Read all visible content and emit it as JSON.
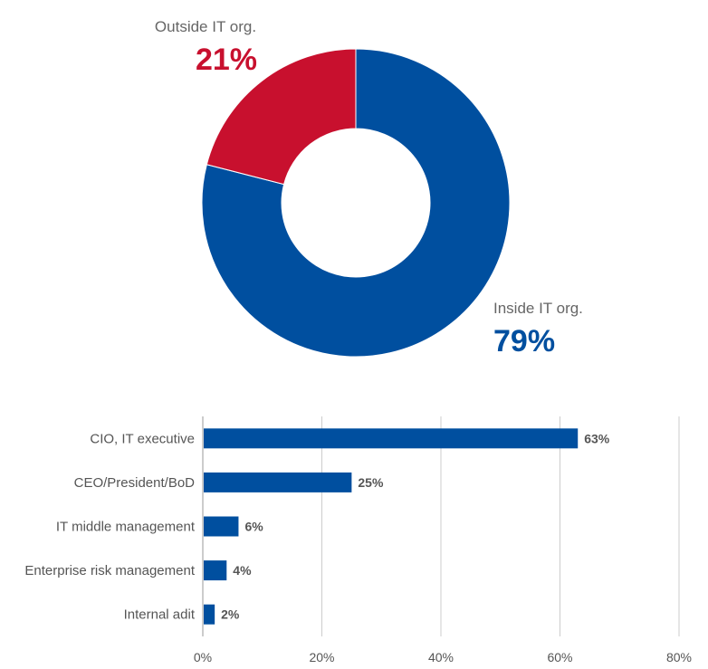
{
  "chart_data": [
    {
      "type": "pie",
      "title": "",
      "categories": [
        "Inside IT org.",
        "Outside IT org."
      ],
      "values": [
        79,
        21
      ],
      "value_labels": [
        "79%",
        "21%"
      ],
      "colors": [
        "#004f9f",
        "#c8102e"
      ]
    },
    {
      "type": "bar",
      "orientation": "horizontal",
      "title": "",
      "xlabel": "",
      "ylabel": "",
      "categories": [
        "CIO, IT executive",
        "CEO/President/BoD",
        "IT middle management",
        "Enterprise risk management",
        "Internal adit"
      ],
      "values": [
        63,
        25,
        6,
        4,
        2
      ],
      "value_labels": [
        "63%",
        "25%",
        "6%",
        "4%",
        "2%"
      ],
      "xlim": [
        0,
        80
      ],
      "xticks": [
        0,
        20,
        40,
        60,
        80
      ],
      "xtick_labels": [
        "0%",
        "20%",
        "40%",
        "60%",
        "80%"
      ],
      "grid": true,
      "bar_color": "#004f9f"
    }
  ]
}
